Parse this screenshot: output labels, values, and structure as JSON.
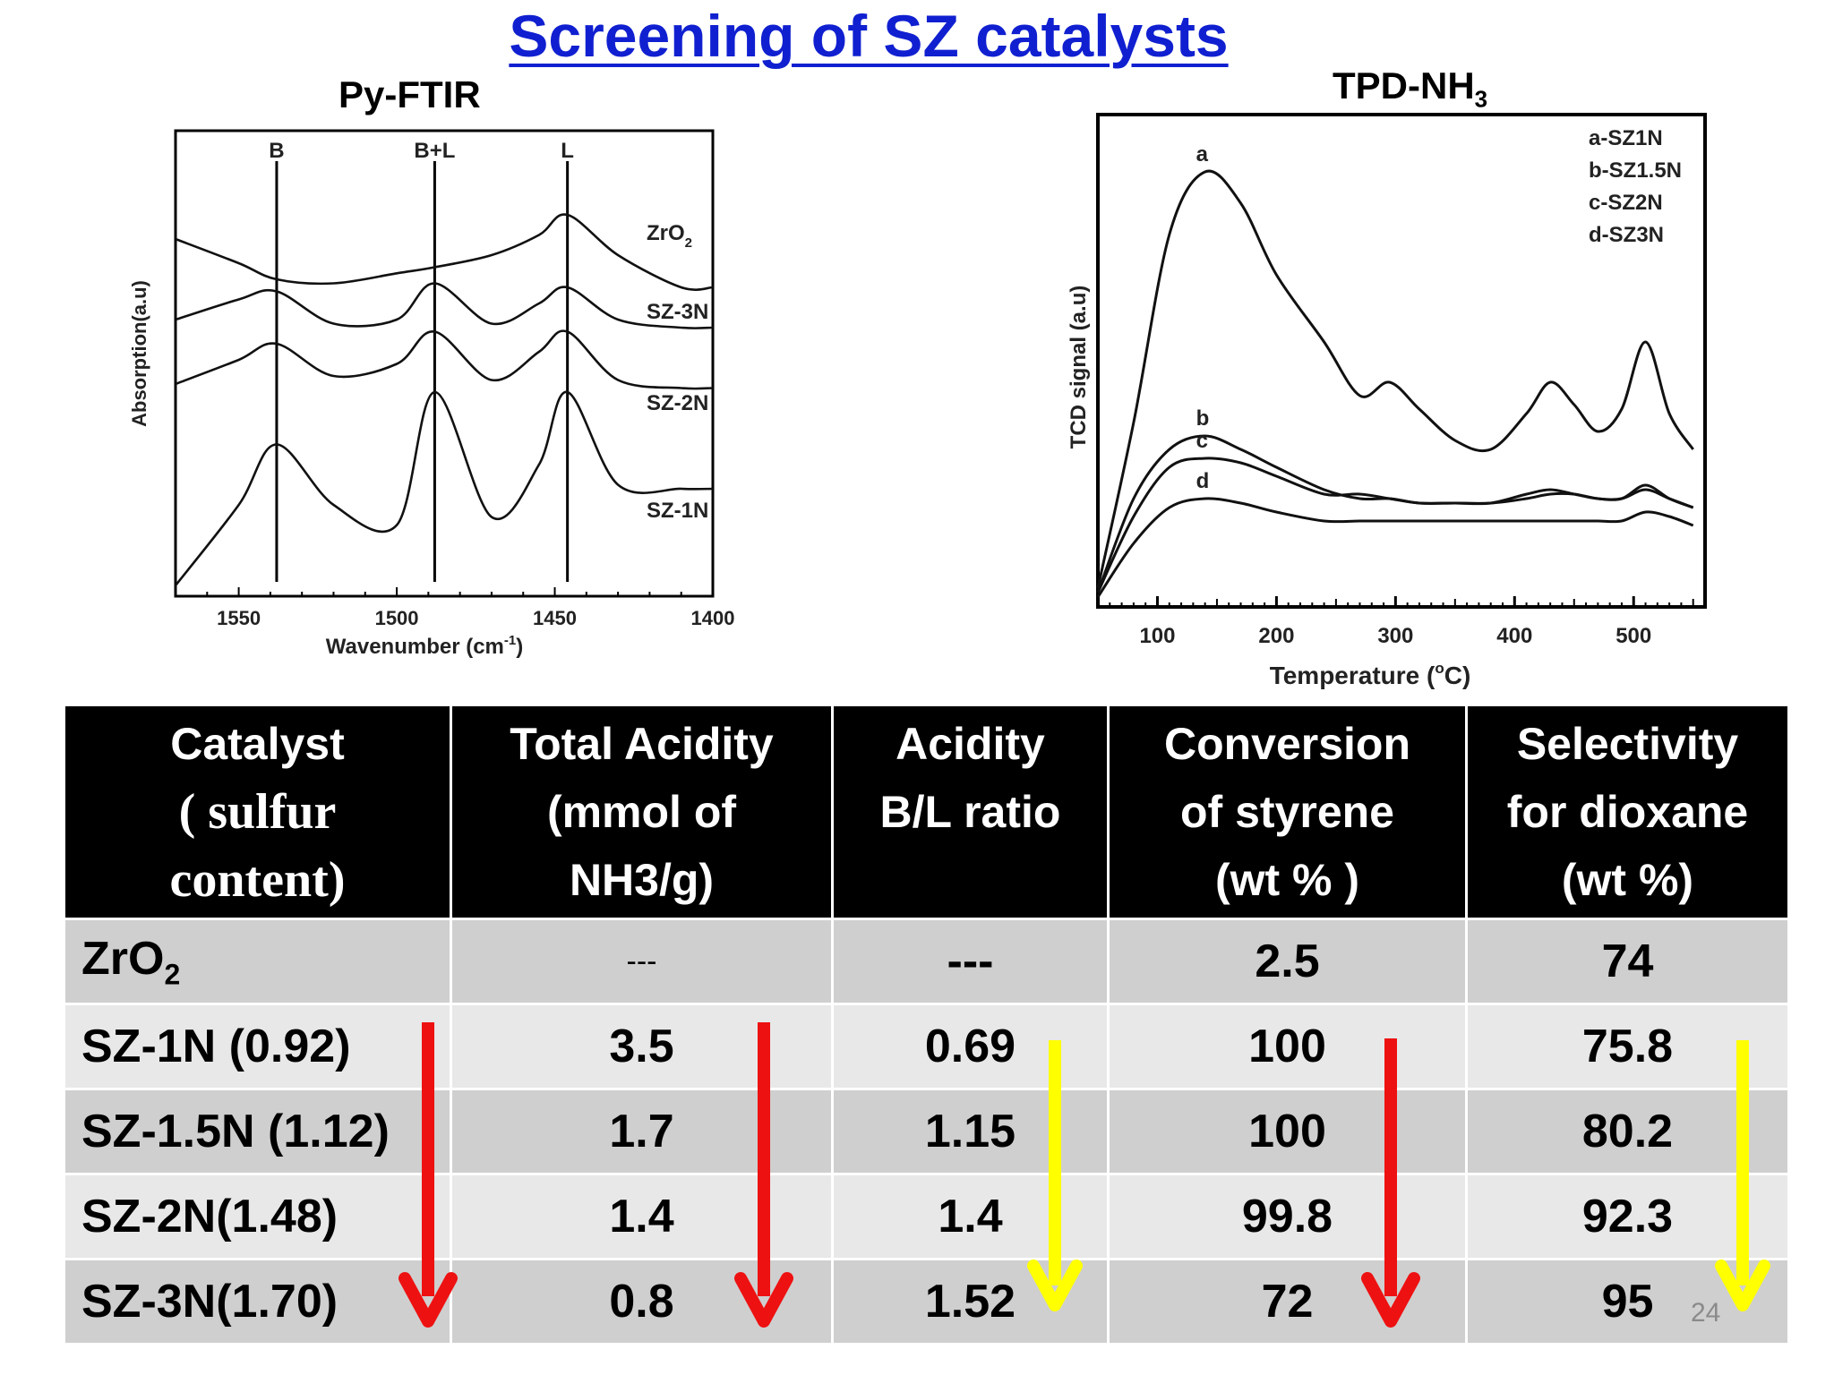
{
  "title": "Screening of SZ catalysts",
  "page_number": "24",
  "ftir": {
    "title": "Py-FTIR",
    "ylabel": "Absorption(a.u)",
    "xlabel": "Wavenumber (cm",
    "xlabel_sup": "-1",
    "xlabel_close": ")",
    "xticks": [
      "1550",
      "1500",
      "1450",
      "1400"
    ],
    "markers": [
      "B",
      "B+L",
      "L"
    ],
    "curves": [
      {
        "label": "ZrO",
        "sub": "2"
      },
      {
        "label": "SZ-3N"
      },
      {
        "label": "SZ-2N"
      },
      {
        "label": "SZ-1N"
      }
    ]
  },
  "tpd": {
    "title": "TPD-NH",
    "title_sub": "3",
    "ylabel": "TCD signal (a.u)",
    "xlabel": "Temperature (",
    "xlabel_sup": "o",
    "xlabel_close": "C)",
    "xticks": [
      "100",
      "200",
      "300",
      "400",
      "500"
    ],
    "curve_letters": [
      "a",
      "b",
      "c",
      "d"
    ],
    "legend": [
      "a-SZ1N",
      "b-SZ1.5N",
      "c-SZ2N",
      "d-SZ3N"
    ]
  },
  "chart_data": [
    {
      "type": "line",
      "title": "Py-FTIR",
      "xlabel": "Wavenumber (cm-1)",
      "ylabel": "Absorption(a.u)",
      "xlim": [
        1570,
        1400
      ],
      "x_ticks": [
        1550,
        1500,
        1450,
        1400
      ],
      "reference_lines": [
        {
          "label": "B",
          "x": 1538
        },
        {
          "label": "B+L",
          "x": 1488
        },
        {
          "label": "L",
          "x": 1446
        }
      ],
      "x": [
        1570,
        1550,
        1538,
        1520,
        1500,
        1488,
        1470,
        1455,
        1446,
        1430,
        1410,
        1400
      ],
      "series": [
        {
          "name": "ZrO2",
          "values": [
            8.6,
            8.0,
            7.6,
            7.5,
            7.75,
            7.9,
            8.2,
            8.7,
            9.2,
            8.2,
            7.4,
            7.4
          ]
        },
        {
          "name": "SZ-3N",
          "values": [
            6.6,
            7.1,
            7.3,
            6.5,
            6.6,
            7.5,
            6.5,
            7.0,
            7.4,
            6.6,
            6.4,
            6.4
          ]
        },
        {
          "name": "SZ-2N",
          "values": [
            5.0,
            5.6,
            6.0,
            5.2,
            5.5,
            6.3,
            5.1,
            5.8,
            6.3,
            5.1,
            4.9,
            4.9
          ]
        },
        {
          "name": "SZ-1N",
          "values": [
            0.0,
            2.0,
            3.5,
            2.0,
            1.5,
            4.8,
            1.7,
            3.0,
            4.8,
            2.5,
            2.4,
            2.4
          ]
        }
      ]
    },
    {
      "type": "line",
      "title": "TPD-NH3",
      "xlabel": "Temperature (oC)",
      "ylabel": "TCD signal (a.u)",
      "xlim": [
        50,
        560
      ],
      "x_ticks": [
        100,
        200,
        300,
        400,
        500
      ],
      "legend_position": "top-right",
      "x": [
        50,
        80,
        110,
        140,
        170,
        200,
        240,
        270,
        295,
        320,
        350,
        380,
        410,
        430,
        450,
        470,
        490,
        510,
        530,
        550
      ],
      "series": [
        {
          "name": "a-SZ1N",
          "values": [
            0.3,
            4.0,
            8.2,
            9.6,
            8.9,
            7.3,
            5.8,
            4.6,
            4.9,
            4.3,
            3.6,
            3.4,
            4.2,
            4.9,
            4.4,
            3.8,
            4.3,
            5.8,
            4.2,
            3.4
          ]
        },
        {
          "name": "b-SZ1.5N",
          "values": [
            0.2,
            2.3,
            3.4,
            3.7,
            3.4,
            3.0,
            2.5,
            2.3,
            2.3,
            2.2,
            2.2,
            2.2,
            2.4,
            2.5,
            2.4,
            2.3,
            2.3,
            2.5,
            2.3,
            2.1
          ]
        },
        {
          "name": "c-SZ2N",
          "values": [
            0.2,
            1.9,
            3.0,
            3.2,
            3.1,
            2.8,
            2.4,
            2.4,
            2.3,
            2.2,
            2.2,
            2.2,
            2.3,
            2.4,
            2.4,
            2.3,
            2.3,
            2.6,
            2.3,
            2.1
          ]
        },
        {
          "name": "d-SZ3N",
          "values": [
            0.1,
            1.3,
            2.1,
            2.3,
            2.2,
            2.0,
            1.8,
            1.8,
            1.8,
            1.8,
            1.8,
            1.8,
            1.8,
            1.8,
            1.8,
            1.8,
            1.8,
            2.0,
            1.9,
            1.7
          ]
        }
      ]
    },
    {
      "type": "table",
      "columns": [
        "Catalyst ( sulfur content)",
        "Total Acidity (mmol of NH3/g)",
        "Acidity B/L ratio",
        "Conversion of styrene (wt % )",
        "Selectivity for dioxane (wt %)"
      ],
      "rows": [
        [
          "ZrO2",
          "---",
          "---",
          "2.5",
          "74"
        ],
        [
          "SZ-1N (0.92)",
          "3.5",
          "0.69",
          "100",
          "75.8"
        ],
        [
          "SZ-1.5N (1.12)",
          "1.7",
          "1.15",
          "100",
          "80.2"
        ],
        [
          "SZ-2N(1.48)",
          "1.4",
          "1.4",
          "99.8",
          "92.3"
        ],
        [
          "SZ-3N(1.70)",
          "0.8",
          "1.52",
          "72",
          "95"
        ]
      ]
    }
  ],
  "table": {
    "headers": [
      {
        "lines": [
          "Catalyst",
          "( sulfur",
          "content)"
        ]
      },
      {
        "lines": [
          "Total Acidity",
          "(mmol of",
          "NH3/g)"
        ]
      },
      {
        "lines": [
          "Acidity",
          "B/L ratio"
        ]
      },
      {
        "lines": [
          "Conversion",
          "of styrene",
          "(wt % )"
        ]
      },
      {
        "lines": [
          "Selectivity",
          "for  dioxane",
          "(wt %)"
        ]
      }
    ],
    "rows": [
      {
        "catalyst": "ZrO",
        "catalyst_sub": "2",
        "total_acidity": "---",
        "bl_ratio": "---",
        "conversion": "2.5",
        "selectivity": "74"
      },
      {
        "catalyst": "SZ-1N (0.92)",
        "total_acidity": "3.5",
        "bl_ratio": "0.69",
        "conversion": "100",
        "selectivity": "75.8"
      },
      {
        "catalyst": "SZ-1.5N (1.12)",
        "total_acidity": "1.7",
        "bl_ratio": "1.15",
        "conversion": "100",
        "selectivity": "80.2"
      },
      {
        "catalyst": "SZ-2N(1.48)",
        "total_acidity": "1.4",
        "bl_ratio": "1.4",
        "conversion": "99.8",
        "selectivity": "92.3"
      },
      {
        "catalyst": "SZ-3N(1.70)",
        "total_acidity": "0.8",
        "bl_ratio": "1.52",
        "conversion": "72",
        "selectivity": "95"
      }
    ]
  },
  "colors": {
    "title": "#1020d0",
    "arrow_red": "#ee1111",
    "arrow_yellow": "#ffff00",
    "header_bg": "#000000",
    "row_dark": "#cfcfcf",
    "row_light": "#e8e8e8"
  }
}
